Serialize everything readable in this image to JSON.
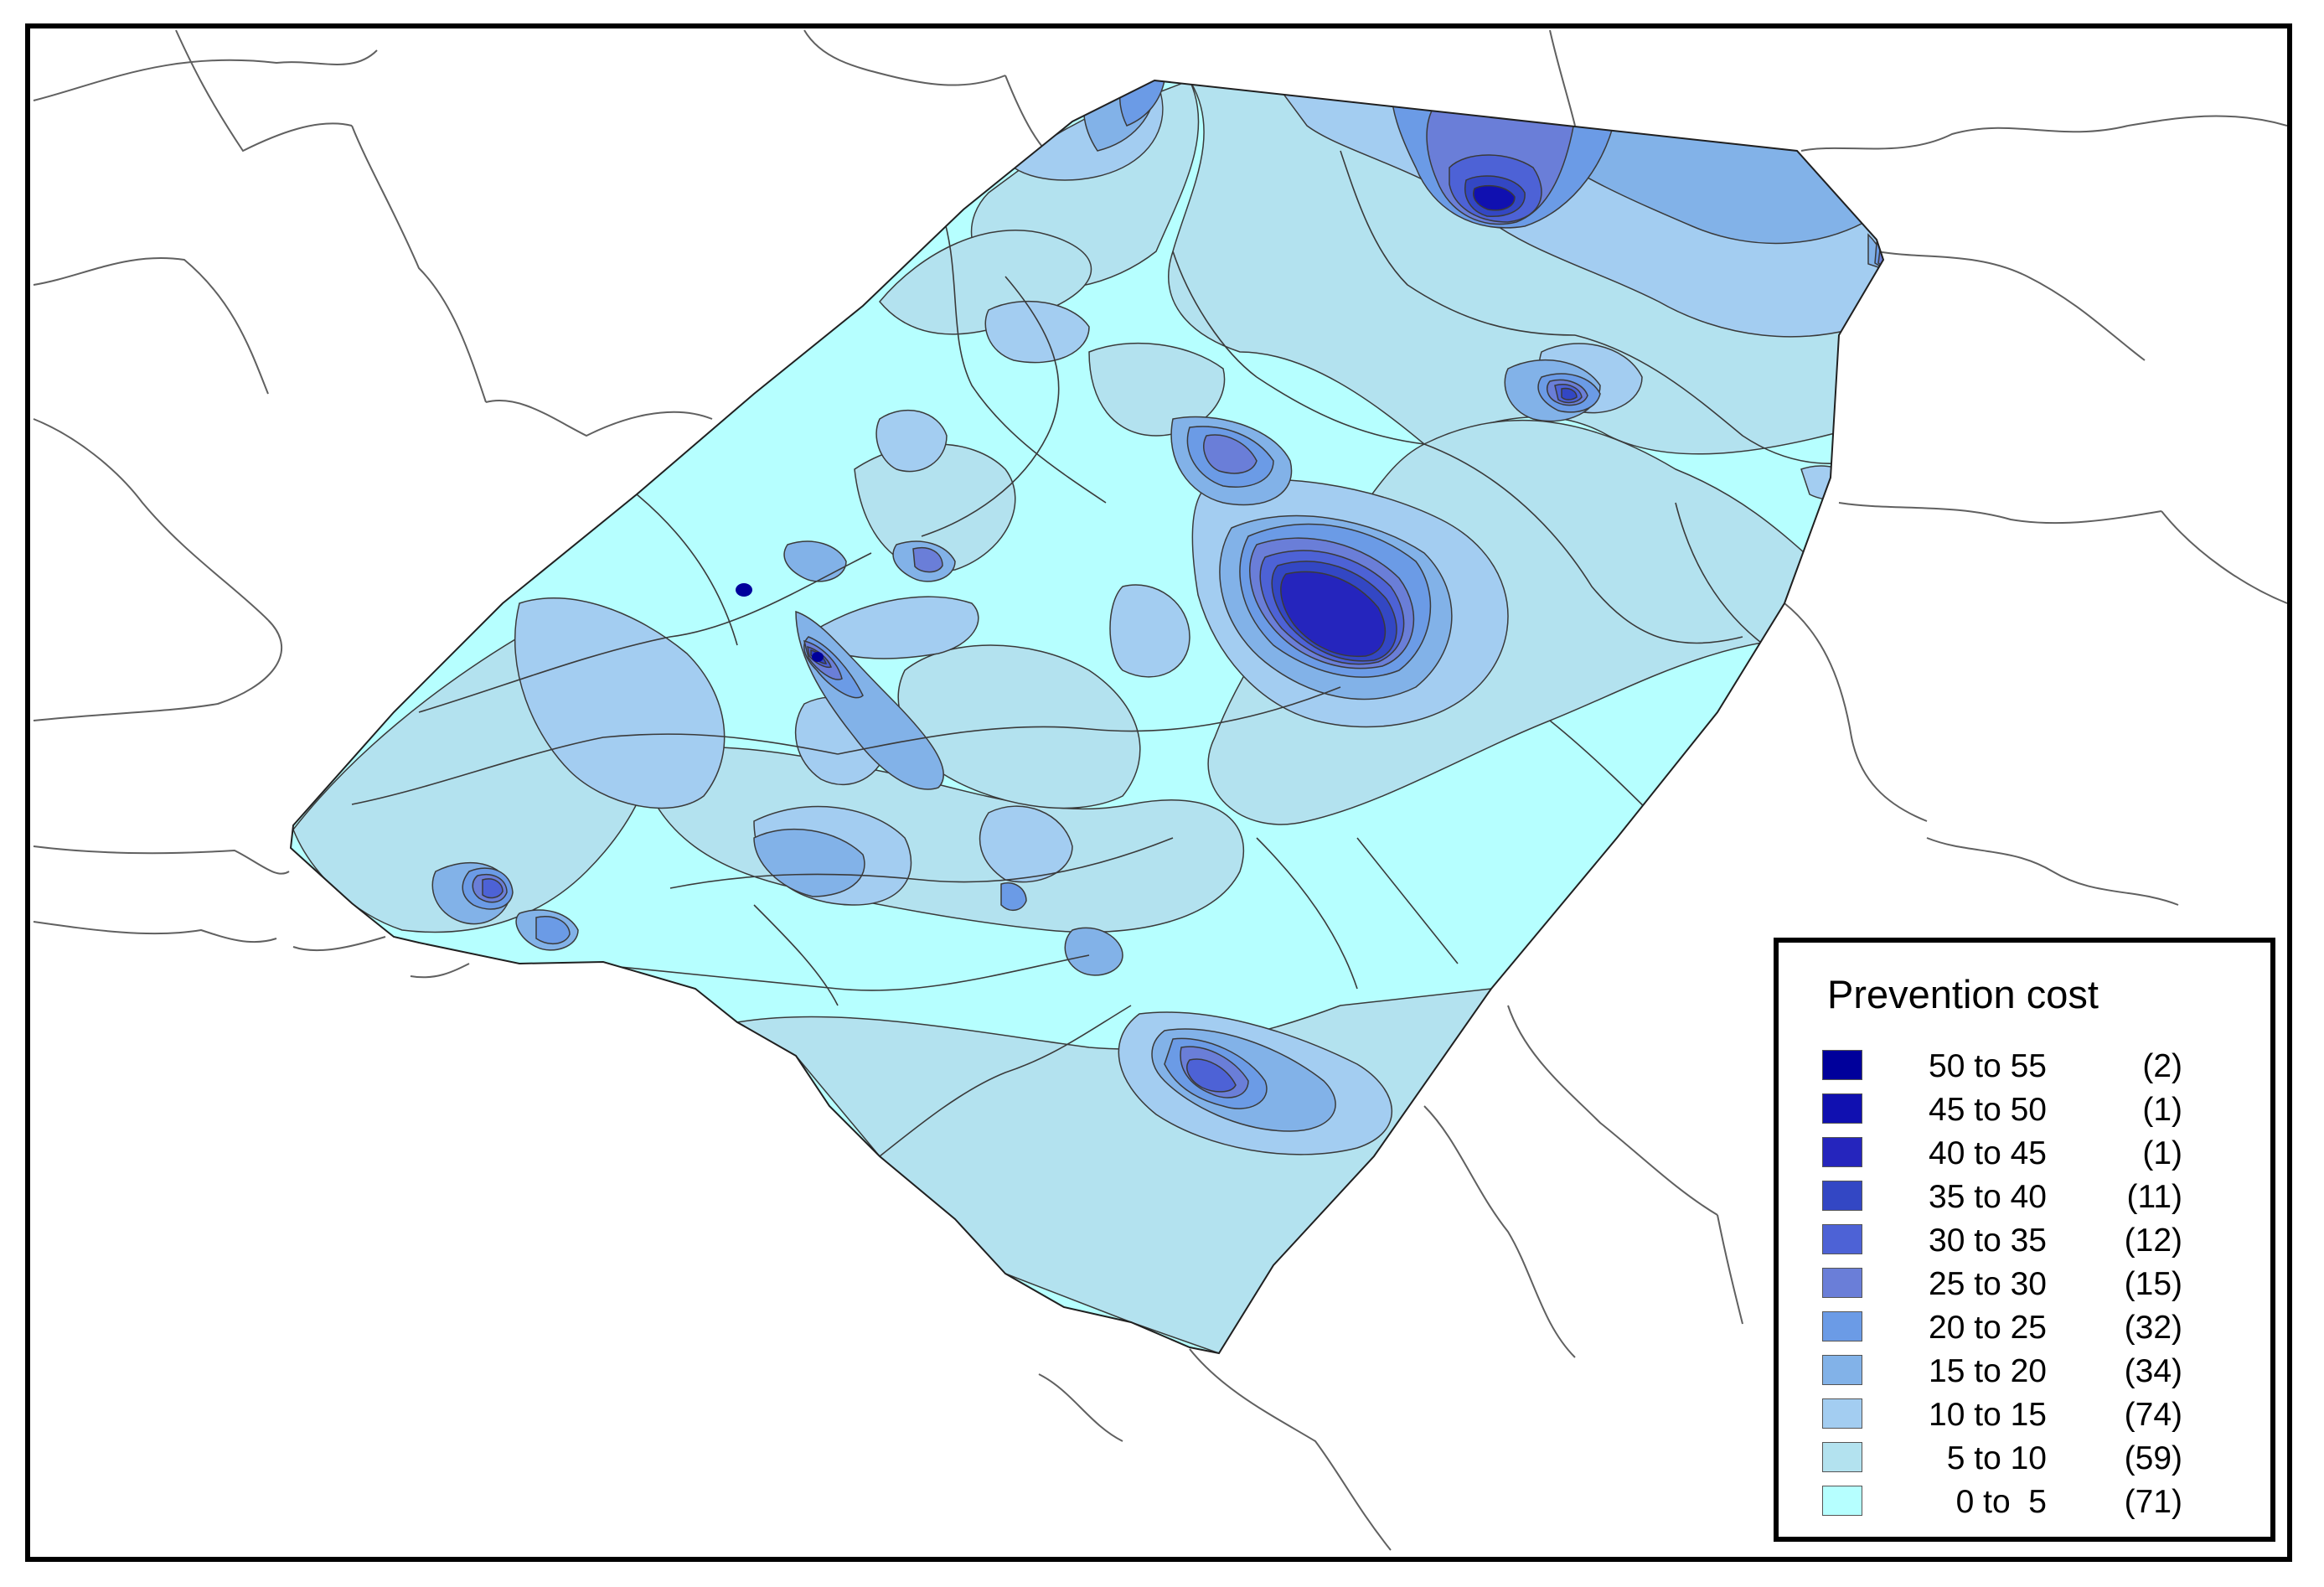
{
  "legend": {
    "title": "Prevention cost",
    "classes": [
      {
        "label": "50 to 55",
        "count": "(2)",
        "color": "#00009b"
      },
      {
        "label": "45 to 50",
        "count": "(1)",
        "color": "#1010b0"
      },
      {
        "label": "40 to 45",
        "count": "(1)",
        "color": "#2525bd"
      },
      {
        "label": "35 to 40",
        "count": "(11)",
        "color": "#3347c4"
      },
      {
        "label": "30 to 35",
        "count": "(12)",
        "color": "#4d62d6"
      },
      {
        "label": "25 to 30",
        "count": "(15)",
        "color": "#6a7ed8"
      },
      {
        "label": "20 to 25",
        "count": "(32)",
        "color": "#6b9be6"
      },
      {
        "label": "15 to 20",
        "count": "(34)",
        "color": "#82b2e8"
      },
      {
        "label": "10 to 15",
        "count": "(74)",
        "color": "#a3cdf1"
      },
      {
        "label": "5 to 10",
        "count": "(59)",
        "color": "#b3e2ef"
      },
      {
        "label": "0 to  5",
        "count": "(71)",
        "color": "#b6ffff"
      }
    ]
  },
  "colors": {
    "frame": "#000000",
    "boundary": "#555555",
    "background": "#ffffff"
  }
}
